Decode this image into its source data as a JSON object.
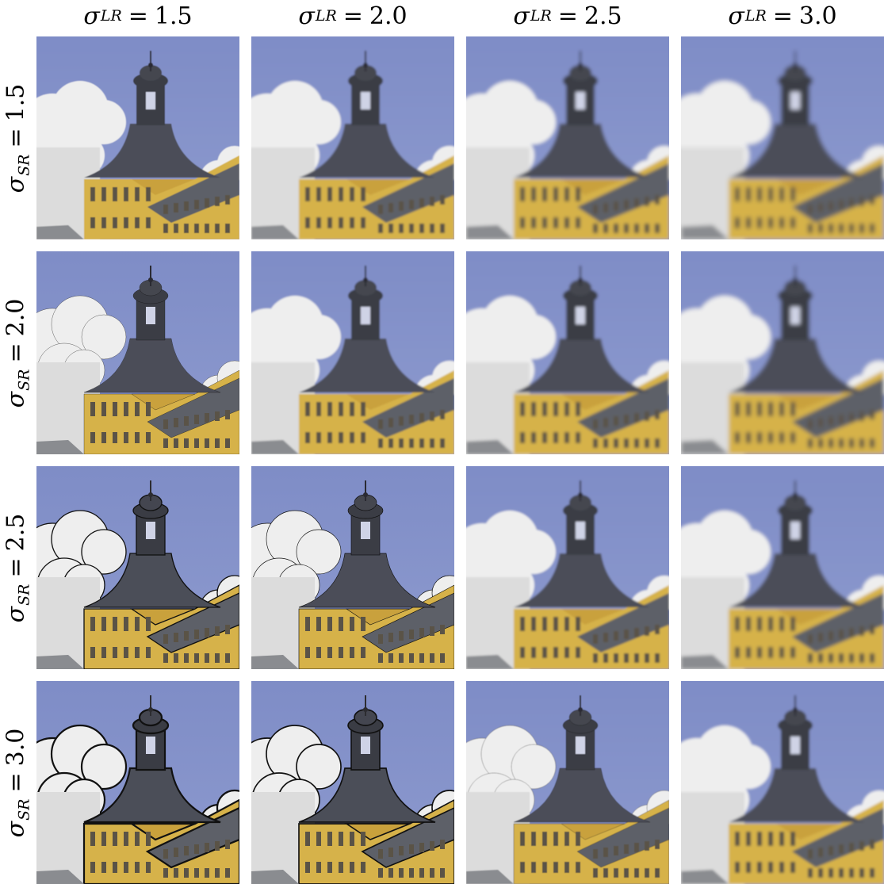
{
  "symbol": "σ",
  "equals": "=",
  "col_header": {
    "subscript": "LR",
    "values": [
      "1.5",
      "2.0",
      "2.5",
      "3.0"
    ]
  },
  "row_header": {
    "subscript": "SR",
    "values": [
      "1.5",
      "2.0",
      "2.5",
      "3.0"
    ]
  },
  "colors": {
    "sky": "#8e9bcf",
    "cloud": "#eeeeee",
    "facade": "#d6b24a",
    "roof": "#4b4e58",
    "background": "#ffffff"
  },
  "tiles": [
    [
      {
        "blur": 0.6,
        "ringing": 0
      },
      {
        "blur": 1.4,
        "ringing": 0
      },
      {
        "blur": 2.2,
        "ringing": 0
      },
      {
        "blur": 3.0,
        "ringing": 0
      }
    ],
    [
      {
        "blur": 0.3,
        "ringing": 0.15
      },
      {
        "blur": 1.0,
        "ringing": 0
      },
      {
        "blur": 1.9,
        "ringing": 0
      },
      {
        "blur": 2.7,
        "ringing": 0
      }
    ],
    [
      {
        "blur": 0,
        "ringing": 0.6
      },
      {
        "blur": 0.2,
        "ringing": 0.3
      },
      {
        "blur": 1.3,
        "ringing": 0
      },
      {
        "blur": 2.2,
        "ringing": 0
      }
    ],
    [
      {
        "blur": 0,
        "ringing": 1.0
      },
      {
        "blur": 0,
        "ringing": 0.75
      },
      {
        "blur": 0.5,
        "ringing": 0.15
      },
      {
        "blur": 1.6,
        "ringing": 0
      }
    ]
  ]
}
